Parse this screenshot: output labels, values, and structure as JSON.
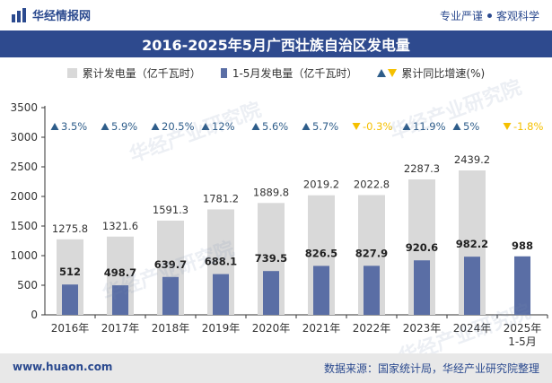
{
  "header": {
    "logo_text": "华经情报网",
    "tag_a": "专业严谨",
    "tag_b": "客观科学"
  },
  "title": "2016-2025年5月广西壮族自治区发电量",
  "legend": {
    "series1": "累计发电量（亿千瓦时）",
    "series2": "1-5月发电量（亿千瓦时）",
    "series3": "累计同比增速(%)"
  },
  "watermark": "华经产业研究院",
  "colors": {
    "cumulative": "#d9d9d9",
    "monthly": "#5a6ea5",
    "growth_pos": "#2e5d8a",
    "growth_neg": "#f5c000",
    "accent": "#2e4a8e"
  },
  "chart_data": {
    "type": "bar",
    "title": "2016-2025年5月广西壮族自治区发电量",
    "categories": [
      "2016年",
      "2017年",
      "2018年",
      "2019年",
      "2020年",
      "2021年",
      "2022年",
      "2023年",
      "2024年",
      "2025年\n1-5月"
    ],
    "series": [
      {
        "name": "累计发电量（亿千瓦时）",
        "values": [
          1275.8,
          1321.6,
          1591.3,
          1781.2,
          1889.8,
          2019.2,
          2022.8,
          2287.3,
          2439.2,
          null
        ]
      },
      {
        "name": "1-5月发电量（亿千瓦时）",
        "values": [
          512,
          498.7,
          639.7,
          688.1,
          739.5,
          826.5,
          827.9,
          920.6,
          982.2,
          988
        ]
      }
    ],
    "growth": {
      "name": "累计同比增速(%)",
      "values": [
        3.5,
        5.9,
        20.5,
        12,
        5.6,
        5.7,
        -0.3,
        11.9,
        5,
        -1.8
      ],
      "labels": [
        "3.5%",
        "5.9%",
        "20.5%",
        "12%",
        "5.6%",
        "5.7%",
        "-0.3%",
        "11.9%",
        "5%",
        "-1.8%"
      ]
    },
    "yticks": [
      0,
      500,
      1000,
      1500,
      2000,
      2500,
      3000,
      3500
    ],
    "ylim": [
      0,
      3500
    ],
    "xlabel": "",
    "ylabel": ""
  },
  "footer": {
    "url": "www.huaon.com",
    "source": "数据来源：国家统计局，华经产业研究院整理"
  }
}
